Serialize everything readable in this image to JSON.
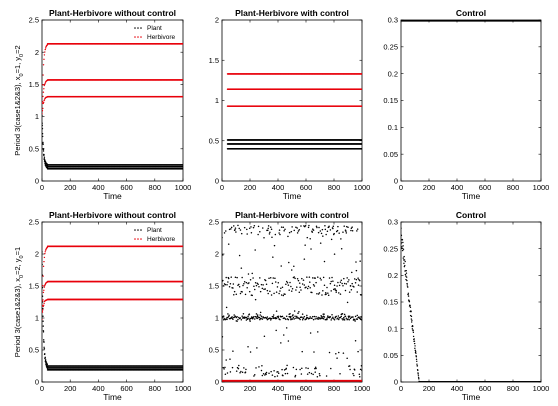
{
  "chart_data": [
    {
      "id": "p1",
      "type": "scatter",
      "title": "Plant-Herbivore without control",
      "xlabel": "Time",
      "ylabel_parts": [
        "Period 3(case1&2&3), x",
        "0",
        "=1, y",
        "0",
        "=2"
      ],
      "xlim": [
        0,
        1000
      ],
      "ylim": [
        0,
        2.5
      ],
      "xticks": [
        "0",
        "200",
        "400",
        "600",
        "800",
        "1000"
      ],
      "yticks": [
        "0",
        "0.5",
        "1",
        "1.5",
        "2",
        "2.5"
      ],
      "legend": [
        "Plant",
        "Herbivore"
      ],
      "legend_position": "top-right",
      "series": [
        {
          "name": "Plant",
          "color": "#000000",
          "levels": [
            0.19,
            0.22,
            0.25
          ],
          "transient_start": 1.0
        },
        {
          "name": "Herbivore",
          "color": "#e8000b",
          "levels": [
            1.31,
            1.57,
            2.13
          ],
          "transient_start": 1.0
        }
      ]
    },
    {
      "id": "p2",
      "type": "scatter",
      "title": "Plant-Herbivore with control",
      "xlabel": "Time",
      "xlim": [
        0,
        1000
      ],
      "ylim": [
        0,
        2
      ],
      "xticks": [
        "0",
        "200",
        "400",
        "600",
        "800",
        "1000"
      ],
      "yticks": [
        "0",
        "0.5",
        "1",
        "1.5",
        "2"
      ],
      "series": [
        {
          "color": "#000000",
          "levels": [
            0.4,
            0.46,
            0.51
          ]
        },
        {
          "color": "#e8000b",
          "levels": [
            0.93,
            1.14,
            1.33
          ]
        }
      ]
    },
    {
      "id": "p3",
      "type": "line",
      "title": "Control",
      "xlabel": "Time",
      "xlim": [
        0,
        1000
      ],
      "ylim": [
        0,
        0.3
      ],
      "xticks": [
        "0",
        "200",
        "400",
        "600",
        "800",
        "1000"
      ],
      "yticks": [
        "0",
        "0.05",
        "0.1",
        "0.15",
        "0.2",
        "0.25",
        "0.3"
      ],
      "series": [
        {
          "color": "#000000",
          "constant_value": 0.3
        }
      ]
    },
    {
      "id": "p4",
      "type": "scatter",
      "title": "Plant-Herbivore without control",
      "xlabel": "Time",
      "ylabel_parts": [
        "Period 3(case1&2&3), x",
        "0",
        "=2, y",
        "0",
        "=1"
      ],
      "xlim": [
        0,
        1000
      ],
      "ylim": [
        0,
        2.5
      ],
      "xticks": [
        "0",
        "200",
        "400",
        "600",
        "800",
        "1000"
      ],
      "yticks": [
        "0",
        "0.5",
        "1",
        "1.5",
        "2",
        "2.5"
      ],
      "legend": [
        "Plant",
        "Herbivore"
      ],
      "legend_position": "top-right",
      "series": [
        {
          "name": "Plant",
          "color": "#000000",
          "levels": [
            0.19,
            0.22,
            0.25
          ],
          "transient_start": 2.0
        },
        {
          "name": "Herbivore",
          "color": "#e8000b",
          "levels": [
            1.29,
            1.57,
            2.12
          ],
          "transient_start": 1.0
        }
      ]
    },
    {
      "id": "p5",
      "type": "scatter",
      "title": "Plant-Herbivore with control",
      "xlabel": "Time",
      "xlim": [
        0,
        1000
      ],
      "ylim": [
        0,
        2.5
      ],
      "xticks": [
        "0",
        "200",
        "400",
        "600",
        "800",
        "1000"
      ],
      "yticks": [
        "0",
        "0.5",
        "1",
        "1.5",
        "2",
        "2.5"
      ],
      "series": [
        {
          "color": "#000000",
          "pattern": "chaotic",
          "range": [
            0,
            2.45
          ]
        },
        {
          "color": "#e8000b",
          "pattern": "constant",
          "constant_value": 0.02
        }
      ]
    },
    {
      "id": "p6",
      "type": "scatter",
      "title": "Control",
      "xlabel": "Time",
      "xlim": [
        0,
        1000
      ],
      "ylim": [
        0,
        0.3
      ],
      "xticks": [
        "0",
        "200",
        "400",
        "600",
        "800",
        "1000"
      ],
      "yticks": [
        "0",
        "0.05",
        "0.1",
        "0.15",
        "0.2",
        "0.25",
        "0.3"
      ],
      "series": [
        {
          "color": "#000000",
          "decay_start": 0.28,
          "decay_end_time": 130,
          "tail_value": 0
        }
      ]
    }
  ]
}
